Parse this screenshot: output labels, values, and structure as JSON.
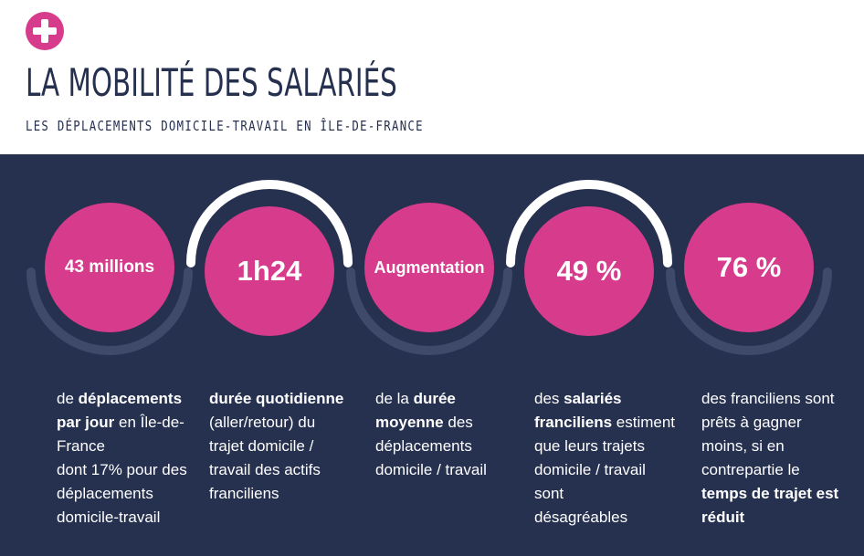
{
  "header": {
    "title": "LA MOBILITÉ DES SALARIÉS",
    "subtitle": "LES DÉPLACEMENTS DOMICILE-TRAVAIL EN ÎLE-DE-FRANCE",
    "icon": "plus-icon",
    "accent_color": "#d63b8c",
    "text_color": "#26304f"
  },
  "panel": {
    "background": "#26304f"
  },
  "stats": [
    {
      "value": "43 millions",
      "lines": [
        [
          {
            "t": "de "
          },
          {
            "t": "déplacements",
            "b": true
          }
        ],
        [
          {
            "t": "par jour",
            "b": true
          },
          {
            "t": " en Île-de-"
          }
        ],
        [
          {
            "t": "France"
          }
        ],
        [
          {
            "t": "dont 17% pour des"
          }
        ],
        [
          {
            "t": "déplacements"
          }
        ],
        [
          {
            "t": "domicile-travail"
          }
        ]
      ]
    },
    {
      "value": "1h24",
      "lines": [
        [
          {
            "t": "durée quotidienne",
            "b": true
          }
        ],
        [
          {
            "t": "(aller/retour) du"
          }
        ],
        [
          {
            "t": "trajet domicile /"
          }
        ],
        [
          {
            "t": "travail des actifs"
          }
        ],
        [
          {
            "t": "franciliens"
          }
        ]
      ]
    },
    {
      "value": "Augmentation",
      "lines": [
        [
          {
            "t": "de la "
          },
          {
            "t": "durée",
            "b": true
          }
        ],
        [
          {
            "t": "moyenne",
            "b": true
          },
          {
            "t": " des"
          }
        ],
        [
          {
            "t": "déplacements"
          }
        ],
        [
          {
            "t": "domicile / travail"
          }
        ]
      ]
    },
    {
      "value": "49 %",
      "lines": [
        [
          {
            "t": "des "
          },
          {
            "t": "salariés",
            "b": true
          }
        ],
        [
          {
            "t": "franciliens",
            "b": true
          },
          {
            "t": " estiment"
          }
        ],
        [
          {
            "t": "que leurs trajets"
          }
        ],
        [
          {
            "t": "domicile / travail"
          }
        ],
        [
          {
            "t": "sont"
          }
        ],
        [
          {
            "t": "désagréables"
          }
        ]
      ]
    },
    {
      "value": "76 %",
      "lines": [
        [
          {
            "t": "des franciliens sont"
          }
        ],
        [
          {
            "t": "prêts à gagner"
          }
        ],
        [
          {
            "t": "moins, si en"
          }
        ],
        [
          {
            "t": "contrepartie le"
          }
        ],
        [
          {
            "t": "temps de trajet est",
            "b": true
          }
        ],
        [
          {
            "t": "réduit",
            "b": true
          }
        ]
      ]
    }
  ]
}
